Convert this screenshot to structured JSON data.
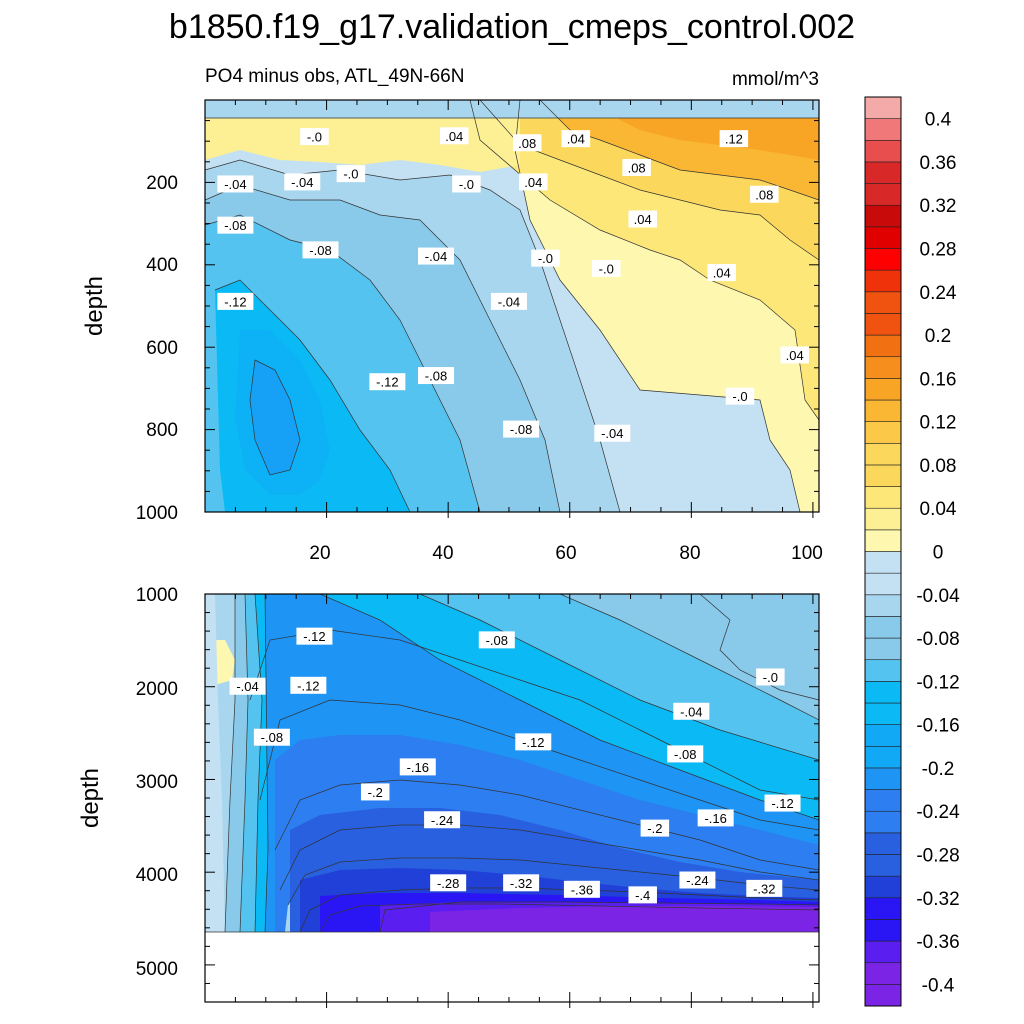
{
  "title": "b1850.f19_g17.validation_cmeps_control.002",
  "subtitle_left": "PO4 minus obs, ATL_49N-66N",
  "subtitle_right": "mmol/m^3",
  "colors": {
    "levels": [
      "#7b24e6",
      "#5a1ff0",
      "#2a16f5",
      "#2040d8",
      "#2860e0",
      "#2d7ef0",
      "#1e94f5",
      "#11a9f5",
      "#0bbaf5",
      "#55c3ef",
      "#89c9ea",
      "#a8d6ee",
      "#c3e1f2",
      "#fdf7b0",
      "#fdef94",
      "#fce778",
      "#fbd85c",
      "#fbc848",
      "#f9b733",
      "#f8a425",
      "#f58e1c",
      "#f07012",
      "#f0520f",
      "#f0320b",
      "#ff0000",
      "#e00000",
      "#c80a0a",
      "#d82828",
      "#e84e4e",
      "#f07878",
      "#f5aaaa"
    ]
  },
  "chart_data": [
    {
      "type": "heatmap",
      "panel": "upper",
      "ylabel": "depth",
      "ylim": [
        1000,
        0
      ],
      "xlim": [
        0,
        101
      ],
      "xticks": [
        "20",
        "40",
        "60",
        "80",
        "100"
      ],
      "yticks": [
        "200",
        "400",
        "600",
        "800",
        "1000"
      ],
      "contour_labels": [
        {
          "text": "-.0",
          "x": 18,
          "y": 90
        },
        {
          "text": ".04",
          "x": 41,
          "y": 88
        },
        {
          "text": ".08",
          "x": 53,
          "y": 105
        },
        {
          "text": ".04",
          "x": 61,
          "y": 95
        },
        {
          "text": ".12",
          "x": 87,
          "y": 95
        },
        {
          "text": "-.04",
          "x": 5,
          "y": 205
        },
        {
          "text": "-.04",
          "x": 16,
          "y": 200
        },
        {
          "text": "-.0",
          "x": 24,
          "y": 180
        },
        {
          "text": "-.0",
          "x": 43,
          "y": 205
        },
        {
          "text": ".04",
          "x": 54,
          "y": 200
        },
        {
          "text": ".08",
          "x": 71,
          "y": 165
        },
        {
          "text": ".08",
          "x": 92,
          "y": 230
        },
        {
          "text": "-.08",
          "x": 5,
          "y": 305
        },
        {
          "text": "-.08",
          "x": 19,
          "y": 365
        },
        {
          "text": "-.04",
          "x": 38,
          "y": 380
        },
        {
          "text": "-.0",
          "x": 56,
          "y": 385
        },
        {
          "text": "-.0",
          "x": 66,
          "y": 410
        },
        {
          "text": ".04",
          "x": 72,
          "y": 290
        },
        {
          "text": ".04",
          "x": 85,
          "y": 420
        },
        {
          "text": "-.12",
          "x": 5,
          "y": 490
        },
        {
          "text": "-.04",
          "x": 50,
          "y": 490
        },
        {
          "text": ".04",
          "x": 97,
          "y": 620
        },
        {
          "text": "-.12",
          "x": 30,
          "y": 685
        },
        {
          "text": "-.08",
          "x": 38,
          "y": 670
        },
        {
          "text": "-.0",
          "x": 88,
          "y": 720
        },
        {
          "text": "-.08",
          "x": 52,
          "y": 800
        },
        {
          "text": "-.04",
          "x": 67,
          "y": 810
        }
      ]
    },
    {
      "type": "heatmap",
      "panel": "lower",
      "ylabel": "depth",
      "ylim": [
        5400,
        1000
      ],
      "xlim": [
        0,
        101
      ],
      "yticks": [
        "1000",
        "2000",
        "3000",
        "4000",
        "5000"
      ],
      "contour_labels": [
        {
          "text": "-.12",
          "x": 18,
          "y": 1460
        },
        {
          "text": "-.08",
          "x": 48,
          "y": 1500
        },
        {
          "text": "-.04",
          "x": 7,
          "y": 2000
        },
        {
          "text": "-.12",
          "x": 17,
          "y": 1990
        },
        {
          "text": "-.0",
          "x": 93,
          "y": 1900
        },
        {
          "text": "-.08",
          "x": 11,
          "y": 2550
        },
        {
          "text": "-.04",
          "x": 80,
          "y": 2270
        },
        {
          "text": "-.12",
          "x": 54,
          "y": 2600
        },
        {
          "text": "-.08",
          "x": 79,
          "y": 2730
        },
        {
          "text": "-.16",
          "x": 35,
          "y": 2870
        },
        {
          "text": "-.2",
          "x": 28,
          "y": 3140
        },
        {
          "text": "-.12",
          "x": 95,
          "y": 3260
        },
        {
          "text": "-.16",
          "x": 84,
          "y": 3420
        },
        {
          "text": "-.24",
          "x": 39,
          "y": 3440
        },
        {
          "text": "-.2",
          "x": 74,
          "y": 3530
        },
        {
          "text": "-.28",
          "x": 40,
          "y": 4120
        },
        {
          "text": "-.32",
          "x": 52,
          "y": 4120
        },
        {
          "text": "-.36",
          "x": 62,
          "y": 4190
        },
        {
          "text": "-.4",
          "x": 72,
          "y": 4250
        },
        {
          "text": "-.24",
          "x": 81,
          "y": 4090
        },
        {
          "text": "-.32",
          "x": 92,
          "y": 4180
        }
      ]
    },
    {
      "type": "colorbar",
      "levels": [
        -0.42,
        -0.4,
        -0.38,
        -0.36,
        -0.34,
        -0.32,
        -0.3,
        -0.28,
        -0.26,
        -0.24,
        -0.22,
        -0.2,
        -0.18,
        -0.16,
        -0.14,
        -0.12,
        -0.1,
        -0.08,
        -0.06,
        -0.04,
        -0.02,
        0,
        0.02,
        0.04,
        0.06,
        0.08,
        0.1,
        0.12,
        0.14,
        0.16,
        0.18,
        0.2,
        0.22,
        0.24,
        0.26,
        0.28,
        0.3,
        0.32,
        0.34,
        0.36,
        0.38,
        0.4,
        0.42
      ],
      "tick_labels": [
        "0.4",
        "0.36",
        "0.32",
        "0.28",
        "0.24",
        "0.2",
        "0.16",
        "0.12",
        "0.08",
        "0.04",
        "0",
        "-0.04",
        "-0.08",
        "-0.12",
        "-0.16",
        "-0.2",
        "-0.24",
        "-0.28",
        "-0.32",
        "-0.36",
        "-0.4"
      ],
      "tick_values": [
        0.4,
        0.36,
        0.32,
        0.28,
        0.24,
        0.2,
        0.16,
        0.12,
        0.08,
        0.04,
        0,
        -0.04,
        -0.08,
        -0.12,
        -0.16,
        -0.2,
        -0.24,
        -0.28,
        -0.32,
        -0.36,
        -0.4
      ]
    }
  ]
}
